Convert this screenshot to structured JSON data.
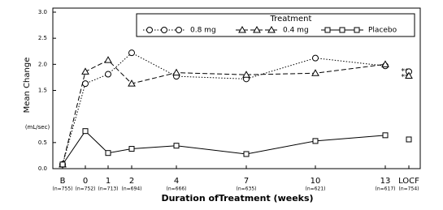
{
  "chart_data": {
    "type": "line",
    "x_label": "Duration ofTreatment (weeks)",
    "y_label": "Mean Change",
    "y_unit": "(mL/sec)",
    "legend_title": "Treatment",
    "categories": [
      "B",
      "0",
      "1",
      "2",
      "4",
      "7",
      "10",
      "13",
      "LOCF"
    ],
    "sublabels": [
      "(n=755)",
      "(n=752)",
      "(n=713)",
      "(n=694)",
      "(n=666)",
      "(n=635)",
      "(n=621)",
      "(n=617)",
      "(n=754)"
    ],
    "series": [
      {
        "name": "0.8 mg",
        "marker": "circle",
        "dash": "dotted",
        "color": "#000000",
        "values": [
          0.08,
          1.63,
          1.81,
          2.22,
          1.77,
          1.72,
          2.12,
          1.97,
          1.86
        ]
      },
      {
        "name": "0.4 mg",
        "marker": "triangle",
        "dash": "dashed",
        "color": "#000000",
        "values": [
          0.08,
          1.86,
          2.08,
          1.63,
          1.84,
          1.8,
          1.83,
          2.0,
          1.78
        ]
      },
      {
        "name": "Placebo",
        "marker": "square",
        "dash": "solid",
        "color": "#000000",
        "values": [
          0.08,
          0.72,
          0.3,
          0.38,
          0.44,
          0.28,
          0.53,
          0.64,
          0.56
        ]
      }
    ],
    "annotations": [
      "**",
      "**"
    ],
    "ylim": [
      0,
      3
    ],
    "yticks": [
      {
        "value": 0,
        "label": "0.0"
      },
      0.5,
      1.5,
      {
        "value": 2,
        "label": "2.0"
      },
      2.5,
      {
        "value": 3,
        "label": "3.0"
      }
    ]
  }
}
